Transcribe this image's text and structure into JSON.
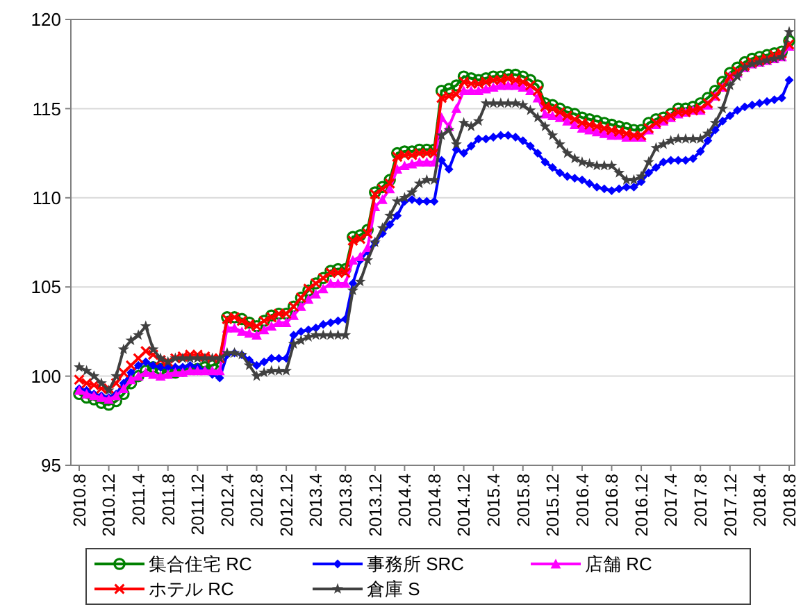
{
  "chart_data": {
    "type": "line",
    "categories": [
      "2010.8",
      null,
      null,
      null,
      "2010.12",
      null,
      null,
      null,
      "2011.4",
      null,
      null,
      null,
      "2011.8",
      null,
      null,
      null,
      "2011.12",
      null,
      null,
      null,
      "2012.4",
      null,
      null,
      null,
      "2012.8",
      null,
      null,
      null,
      "2012.12",
      null,
      null,
      null,
      "2013.4",
      null,
      null,
      null,
      "2013.8",
      null,
      null,
      null,
      "2013.12",
      null,
      null,
      null,
      "2014.4",
      null,
      null,
      null,
      "2014.8",
      null,
      null,
      null,
      "2014.12",
      null,
      null,
      null,
      "2015.4",
      null,
      null,
      null,
      "2015.8",
      null,
      null,
      null,
      "2015.12",
      null,
      null,
      null,
      "2016.4",
      null,
      null,
      null,
      "2016.8",
      null,
      null,
      null,
      "2016.12",
      null,
      null,
      null,
      "2017.4",
      null,
      null,
      null,
      "2017.8",
      null,
      null,
      null,
      "2017.12",
      null,
      null,
      null,
      "2018.4",
      null,
      null,
      null,
      "2018.8"
    ],
    "ylim": [
      95,
      120
    ],
    "yticks": [
      95,
      100,
      105,
      110,
      115,
      120
    ],
    "grid": "y",
    "legend": "bottom",
    "line_style": "solid",
    "series": [
      {
        "name": "集合住宅 RC",
        "color": "#008000",
        "marker": "circle",
        "values": [
          99.0,
          98.8,
          98.7,
          98.5,
          98.4,
          98.6,
          99.0,
          99.6,
          100.0,
          100.3,
          100.5,
          100.4,
          100.2,
          100.2,
          100.3,
          100.4,
          100.4,
          100.5,
          100.6,
          100.8,
          103.3,
          103.3,
          103.2,
          103.0,
          102.8,
          103.1,
          103.4,
          103.5,
          103.5,
          103.9,
          104.4,
          104.8,
          105.2,
          105.5,
          105.9,
          106.0,
          106.0,
          107.8,
          107.9,
          108.2,
          110.3,
          110.6,
          111.0,
          112.5,
          112.6,
          112.6,
          112.7,
          112.7,
          112.7,
          116.0,
          116.1,
          116.3,
          116.8,
          116.7,
          116.6,
          116.7,
          116.8,
          116.8,
          116.9,
          116.9,
          116.8,
          116.6,
          116.3,
          115.3,
          115.2,
          115.0,
          114.8,
          114.7,
          114.5,
          114.4,
          114.3,
          114.2,
          114.1,
          114.0,
          113.9,
          113.8,
          113.8,
          114.2,
          114.4,
          114.5,
          114.7,
          115.0,
          115.0,
          115.1,
          115.3,
          115.6,
          116.0,
          116.5,
          117.0,
          117.3,
          117.6,
          117.8,
          117.9,
          118.0,
          118.1,
          118.2,
          118.8
        ]
      },
      {
        "name": "事務所 SRC",
        "color": "#0000ff",
        "marker": "diamond",
        "values": [
          99.3,
          99.2,
          99.0,
          98.9,
          98.8,
          99.0,
          99.6,
          100.2,
          100.6,
          100.8,
          100.6,
          100.5,
          100.5,
          100.5,
          100.5,
          100.6,
          100.5,
          100.3,
          100.1,
          99.9,
          101.2,
          101.3,
          101.2,
          100.9,
          100.6,
          100.8,
          101.0,
          101.0,
          101.0,
          102.3,
          102.5,
          102.6,
          102.7,
          102.9,
          103.0,
          103.1,
          103.2,
          105.2,
          106.5,
          107.0,
          107.5,
          108.0,
          108.5,
          109.0,
          109.8,
          109.9,
          109.8,
          109.8,
          109.8,
          112.1,
          111.6,
          112.7,
          112.5,
          112.9,
          113.3,
          113.3,
          113.4,
          113.5,
          113.5,
          113.4,
          113.2,
          112.9,
          112.5,
          112.0,
          111.7,
          111.4,
          111.2,
          111.1,
          111.0,
          110.8,
          110.6,
          110.5,
          110.4,
          110.5,
          110.6,
          110.6,
          110.9,
          111.4,
          111.7,
          112.0,
          112.1,
          112.1,
          112.1,
          112.2,
          112.6,
          113.2,
          113.8,
          114.3,
          114.6,
          114.9,
          115.1,
          115.2,
          115.3,
          115.4,
          115.5,
          115.6,
          116.6
        ]
      },
      {
        "name": "店舗 RC",
        "color": "#ff00ff",
        "marker": "triangle",
        "values": [
          99.2,
          99.0,
          98.9,
          98.8,
          98.7,
          98.9,
          99.3,
          99.8,
          100.0,
          100.2,
          100.1,
          100.0,
          100.1,
          100.2,
          100.2,
          100.3,
          100.3,
          100.3,
          100.3,
          100.3,
          102.7,
          102.7,
          102.5,
          102.4,
          102.3,
          102.6,
          102.8,
          103.0,
          103.0,
          103.4,
          103.9,
          104.3,
          104.6,
          104.9,
          105.2,
          105.2,
          105.2,
          106.5,
          106.7,
          107.2,
          109.5,
          109.9,
          110.5,
          111.6,
          111.8,
          111.9,
          112.0,
          112.0,
          112.0,
          114.5,
          114.0,
          115.0,
          116.0,
          116.0,
          116.0,
          116.1,
          116.2,
          116.3,
          116.3,
          116.3,
          116.2,
          116.0,
          115.6,
          114.7,
          114.6,
          114.5,
          114.3,
          114.1,
          113.9,
          113.8,
          113.7,
          113.6,
          113.5,
          113.5,
          113.4,
          113.4,
          113.4,
          113.8,
          114.1,
          114.3,
          114.5,
          114.7,
          114.8,
          114.9,
          114.9,
          115.2,
          115.7,
          116.2,
          116.8,
          117.0,
          117.3,
          117.5,
          117.6,
          117.7,
          117.8,
          117.9,
          118.5
        ]
      },
      {
        "name": "ホテル RC",
        "color": "#ff0000",
        "marker": "cross",
        "values": [
          99.8,
          99.6,
          99.5,
          99.3,
          99.3,
          99.6,
          100.2,
          100.6,
          101.0,
          101.4,
          101.2,
          100.9,
          100.8,
          101.0,
          101.1,
          101.2,
          101.2,
          101.1,
          101.0,
          101.0,
          103.2,
          103.3,
          103.1,
          102.9,
          102.8,
          103.1,
          103.3,
          103.5,
          103.5,
          103.9,
          104.4,
          104.9,
          105.2,
          105.5,
          105.8,
          105.8,
          105.8,
          107.6,
          107.7,
          108.0,
          110.2,
          110.5,
          110.8,
          112.3,
          112.4,
          112.4,
          112.5,
          112.5,
          112.5,
          115.6,
          115.7,
          115.8,
          116.5,
          116.4,
          116.4,
          116.5,
          116.6,
          116.6,
          116.7,
          116.6,
          116.5,
          116.3,
          116.0,
          115.1,
          115.0,
          114.8,
          114.6,
          114.4,
          114.2,
          114.1,
          114.0,
          113.9,
          113.8,
          113.7,
          113.6,
          113.5,
          113.5,
          113.9,
          114.2,
          114.4,
          114.6,
          114.8,
          114.8,
          114.9,
          115.0,
          115.3,
          115.7,
          116.2,
          116.8,
          117.1,
          117.4,
          117.6,
          117.7,
          117.8,
          118.0,
          118.1,
          118.6
        ]
      },
      {
        "name": "倉庫 S",
        "color": "#404040",
        "marker": "star",
        "values": [
          100.5,
          100.3,
          100.0,
          99.6,
          99.2,
          100.0,
          101.5,
          102.0,
          102.3,
          102.8,
          101.5,
          101.0,
          100.8,
          101.0,
          101.0,
          101.0,
          101.0,
          101.0,
          101.0,
          101.0,
          101.3,
          101.3,
          101.2,
          100.6,
          100.0,
          100.2,
          100.3,
          100.3,
          100.3,
          101.8,
          102.0,
          102.2,
          102.3,
          102.3,
          102.3,
          102.3,
          102.3,
          104.8,
          105.3,
          106.5,
          107.5,
          108.3,
          109.0,
          109.8,
          110.0,
          110.3,
          110.8,
          111.0,
          111.0,
          113.5,
          113.8,
          113.0,
          114.2,
          114.0,
          114.3,
          115.3,
          115.3,
          115.3,
          115.3,
          115.3,
          115.2,
          114.9,
          114.5,
          114.0,
          113.5,
          113.0,
          112.5,
          112.2,
          112.0,
          111.9,
          111.8,
          111.8,
          111.8,
          111.4,
          111.0,
          111.0,
          111.2,
          112.0,
          112.8,
          113.0,
          113.2,
          113.3,
          113.3,
          113.3,
          113.3,
          113.6,
          114.2,
          115.0,
          116.3,
          116.8,
          117.3,
          117.5,
          117.6,
          117.7,
          117.8,
          117.9,
          119.3
        ]
      }
    ]
  }
}
